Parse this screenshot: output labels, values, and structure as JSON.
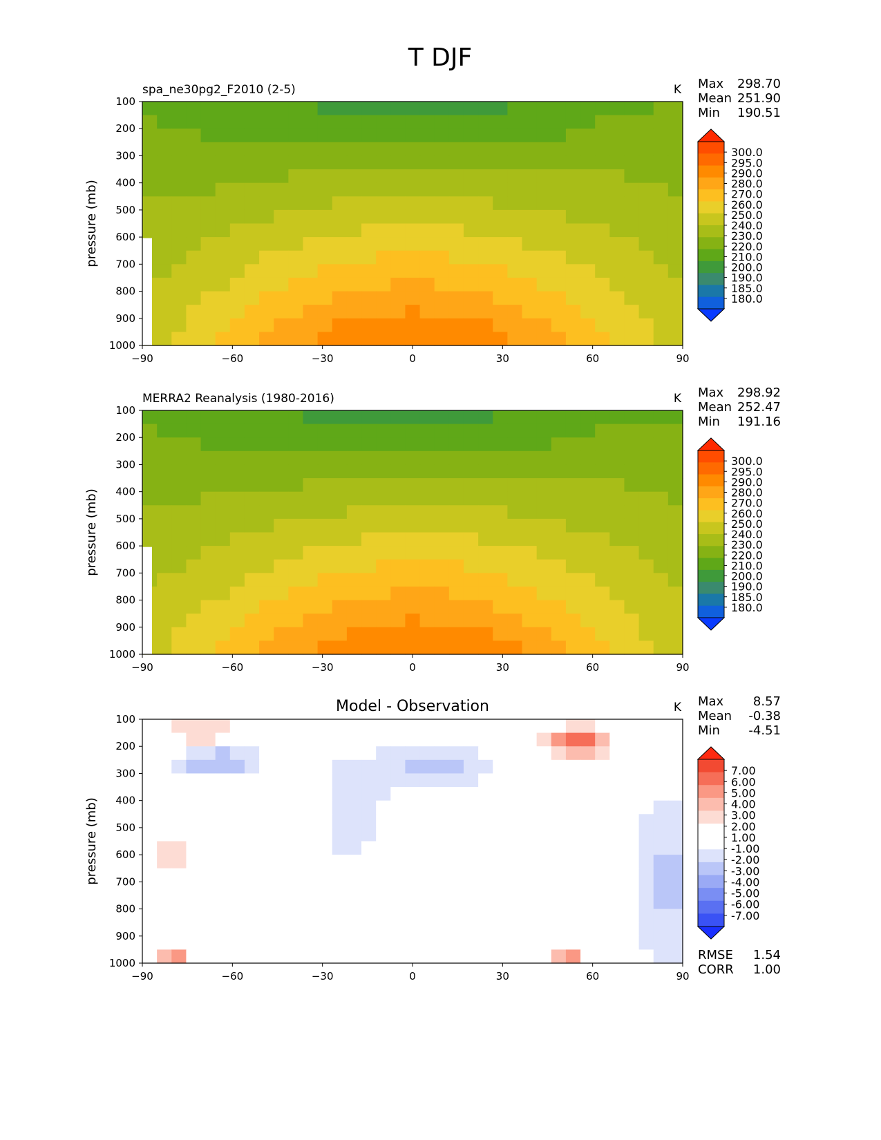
{
  "figure_title": "T DJF",
  "chart_data": [
    {
      "type": "heatmap",
      "title": "spa_ne30pg2_F2010 (2-5)",
      "units": "K",
      "ylabel": "pressure (mb)",
      "xlabel": "",
      "x_ticks": [
        "−90",
        "−60",
        "−30",
        "0",
        "30",
        "60",
        "90"
      ],
      "y_ticks": [
        "100",
        "200",
        "300",
        "400",
        "500",
        "600",
        "700",
        "800",
        "900",
        "1000"
      ],
      "xlim": [
        -90,
        90
      ],
      "ylim": [
        1000,
        100
      ],
      "stats": [
        {
          "label": "Max",
          "value": "298.70"
        },
        {
          "label": "Mean",
          "value": "251.90"
        },
        {
          "label": "Min",
          "value": "190.51"
        }
      ],
      "colorbar": {
        "levels": [
          "300.0",
          "295.0",
          "290.0",
          "280.0",
          "270.0",
          "260.0",
          "250.0",
          "240.0",
          "230.0",
          "220.0",
          "210.0",
          "200.0",
          "190.0",
          "185.0",
          "180.0"
        ],
        "colors": [
          "#ff2a00",
          "#ff4d00",
          "#ff6a00",
          "#ff8a00",
          "#ffa617",
          "#fdbf20",
          "#e9cf2a",
          "#c8c61e",
          "#a8bd18",
          "#86b214",
          "#5fa818",
          "#3f9a3a",
          "#3a8a6e",
          "#1a78a8",
          "#1060dd",
          "#0a3cff"
        ]
      },
      "rows": 18,
      "cols": 37,
      "field": "model"
    },
    {
      "type": "heatmap",
      "title": "MERRA2 Reanalysis (1980-2016)",
      "units": "K",
      "ylabel": "pressure (mb)",
      "xlabel": "",
      "x_ticks": [
        "−90",
        "−60",
        "−30",
        "0",
        "30",
        "60",
        "90"
      ],
      "y_ticks": [
        "100",
        "200",
        "300",
        "400",
        "500",
        "600",
        "700",
        "800",
        "900",
        "1000"
      ],
      "xlim": [
        -90,
        90
      ],
      "ylim": [
        1000,
        100
      ],
      "stats": [
        {
          "label": "Max",
          "value": "298.92"
        },
        {
          "label": "Mean",
          "value": "252.47"
        },
        {
          "label": "Min",
          "value": "191.16"
        }
      ],
      "colorbar": {
        "levels": [
          "300.0",
          "295.0",
          "290.0",
          "280.0",
          "270.0",
          "260.0",
          "250.0",
          "240.0",
          "230.0",
          "220.0",
          "210.0",
          "200.0",
          "190.0",
          "185.0",
          "180.0"
        ],
        "colors": [
          "#ff2a00",
          "#ff4d00",
          "#ff6a00",
          "#ff8a00",
          "#ffa617",
          "#fdbf20",
          "#e9cf2a",
          "#c8c61e",
          "#a8bd18",
          "#86b214",
          "#5fa818",
          "#3f9a3a",
          "#3a8a6e",
          "#1a78a8",
          "#1060dd",
          "#0a3cff"
        ]
      },
      "rows": 18,
      "cols": 37,
      "field": "obs"
    },
    {
      "type": "heatmap",
      "title": "Model - Observation",
      "units": "K",
      "ylabel": "pressure (mb)",
      "xlabel": "",
      "x_ticks": [
        "−90",
        "−60",
        "−30",
        "0",
        "30",
        "60",
        "90"
      ],
      "y_ticks": [
        "100",
        "200",
        "300",
        "400",
        "500",
        "600",
        "700",
        "800",
        "900",
        "1000"
      ],
      "xlim": [
        -90,
        90
      ],
      "ylim": [
        1000,
        100
      ],
      "stats": [
        {
          "label": "Max",
          "value": "8.57"
        },
        {
          "label": "Mean",
          "value": "-0.38"
        },
        {
          "label": "Min",
          "value": "-4.51"
        }
      ],
      "extra_stats": [
        {
          "label": "RMSE",
          "value": "1.54"
        },
        {
          "label": "CORR",
          "value": "1.00"
        }
      ],
      "colorbar": {
        "levels": [
          "7.00",
          "6.00",
          "5.00",
          "4.00",
          "3.00",
          "2.00",
          "1.00",
          "-1.00",
          "-2.00",
          "-3.00",
          "-4.00",
          "-5.00",
          "-6.00",
          "-7.00"
        ],
        "colors": [
          "#ff2a10",
          "#f24a32",
          "#f66e58",
          "#fa9884",
          "#fcbcae",
          "#fddcd4",
          "#ffffff",
          "#ffffff",
          "#dde3fb",
          "#bac6f8",
          "#9aaaf5",
          "#7a8ef3",
          "#5a70f2",
          "#3a52f5",
          "#1a30ff"
        ]
      },
      "rows": 18,
      "cols": 37,
      "field": "diff"
    }
  ]
}
